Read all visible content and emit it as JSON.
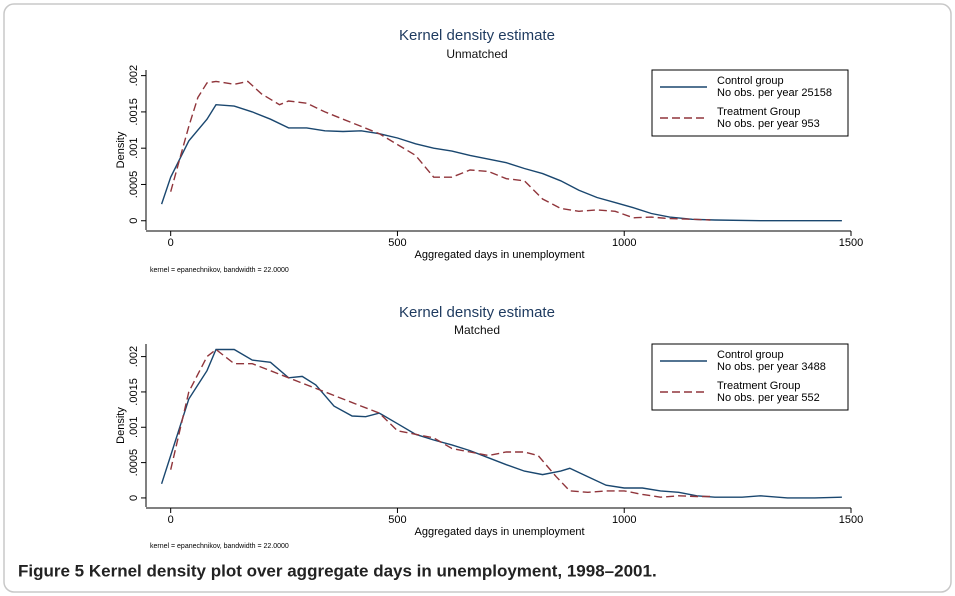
{
  "chart_data": [
    {
      "type": "line",
      "title": "Kernel density estimate",
      "subtitle": "Unmatched",
      "x_label": "Aggregated days in unemployment",
      "y_label": "Density",
      "note": "kernel = epanechnikov, bandwidth = 22.0000",
      "xlim": [
        -50,
        1500
      ],
      "xticks": [
        0,
        500,
        1000,
        1500
      ],
      "ylim": [
        -0.0001,
        0.00205
      ],
      "yticks": [
        0,
        {
          "value": 0.0005,
          "label": ".0005"
        },
        {
          "value": 0.001,
          "label": ".001"
        },
        {
          "value": 0.0015,
          "label": ".0015"
        },
        {
          "value": 0.002,
          "label": ".002"
        }
      ],
      "legend": "upper right",
      "series": [
        {
          "name": "Control group",
          "description": "No obs. per year 25158",
          "color": "#1a476f",
          "dash": false,
          "x": [
            -20,
            0,
            40,
            80,
            100,
            140,
            180,
            220,
            260,
            300,
            340,
            380,
            420,
            460,
            500,
            540,
            580,
            620,
            660,
            700,
            740,
            780,
            820,
            860,
            900,
            940,
            980,
            1020,
            1060,
            1100,
            1150,
            1200,
            1300,
            1400,
            1480
          ],
          "values": [
            0.00023,
            0.0006,
            0.0011,
            0.0014,
            0.0016,
            0.00158,
            0.0015,
            0.0014,
            0.00128,
            0.00128,
            0.00124,
            0.00123,
            0.00124,
            0.0012,
            0.00114,
            0.00106,
            0.001,
            0.00096,
            0.0009,
            0.00085,
            0.0008,
            0.00072,
            0.00065,
            0.00055,
            0.00042,
            0.00032,
            0.00025,
            0.00018,
            0.0001,
            5e-05,
            2e-05,
            1e-05,
            0,
            0,
            0
          ]
        },
        {
          "name": "Treatment Group",
          "description": "No obs. per year 953",
          "color": "#90353b",
          "dash": true,
          "x": [
            0,
            20,
            40,
            60,
            80,
            100,
            140,
            170,
            200,
            240,
            260,
            300,
            340,
            380,
            420,
            460,
            500,
            540,
            580,
            620,
            660,
            700,
            740,
            780,
            820,
            860,
            900,
            940,
            980,
            1020,
            1060,
            1100,
            1150,
            1190
          ],
          "values": [
            0.0004,
            0.00085,
            0.0013,
            0.0017,
            0.0019,
            0.00192,
            0.00188,
            0.00192,
            0.00175,
            0.0016,
            0.00165,
            0.00162,
            0.0015,
            0.0014,
            0.0013,
            0.0012,
            0.00105,
            0.0009,
            0.0006,
            0.0006,
            0.0007,
            0.00068,
            0.00058,
            0.00055,
            0.0003,
            0.00017,
            0.00013,
            0.00015,
            0.00013,
            4e-05,
            5e-05,
            3e-05,
            2e-05,
            1e-05
          ]
        }
      ]
    },
    {
      "type": "line",
      "title": "Kernel density estimate",
      "subtitle": "Matched",
      "x_label": "Aggregated days in unemployment",
      "y_label": "Density",
      "note": "kernel = epanechnikov, bandwidth = 22.0000",
      "xlim": [
        -50,
        1500
      ],
      "xticks": [
        0,
        500,
        1000,
        1500
      ],
      "ylim": [
        -0.0001,
        0.00215
      ],
      "yticks": [
        0,
        {
          "value": 0.0005,
          "label": ".0005"
        },
        {
          "value": 0.001,
          "label": ".001"
        },
        {
          "value": 0.0015,
          "label": ".0015"
        },
        {
          "value": 0.002,
          "label": ".002"
        }
      ],
      "legend": "upper right",
      "series": [
        {
          "name": "Control group",
          "description": "No obs. per year 3488",
          "color": "#1a476f",
          "dash": false,
          "x": [
            -20,
            0,
            40,
            80,
            100,
            140,
            180,
            220,
            260,
            290,
            320,
            360,
            400,
            430,
            460,
            500,
            540,
            580,
            620,
            660,
            700,
            740,
            780,
            820,
            860,
            880,
            920,
            960,
            1000,
            1040,
            1080,
            1120,
            1160,
            1200,
            1260,
            1300,
            1360,
            1420,
            1480
          ],
          "values": [
            0.0002,
            0.0006,
            0.0014,
            0.0018,
            0.0021,
            0.0021,
            0.00195,
            0.00192,
            0.0017,
            0.00172,
            0.0016,
            0.0013,
            0.00116,
            0.00115,
            0.0012,
            0.00105,
            0.0009,
            0.00082,
            0.00075,
            0.00067,
            0.00057,
            0.00047,
            0.00038,
            0.00033,
            0.00038,
            0.00042,
            0.0003,
            0.00018,
            0.00014,
            0.00014,
            0.0001,
            8e-05,
            3e-05,
            1e-05,
            1e-05,
            3e-05,
            0,
            0,
            1e-05
          ]
        },
        {
          "name": "Treatment Group",
          "description": "No obs. per year 552",
          "color": "#90353b",
          "dash": true,
          "x": [
            0,
            40,
            80,
            100,
            140,
            180,
            220,
            260,
            300,
            340,
            380,
            420,
            460,
            500,
            540,
            580,
            620,
            660,
            700,
            740,
            780,
            810,
            850,
            880,
            920,
            960,
            1000,
            1040,
            1080,
            1120,
            1160,
            1190
          ],
          "values": [
            0.0004,
            0.0015,
            0.002,
            0.0021,
            0.0019,
            0.0019,
            0.0018,
            0.0017,
            0.0016,
            0.0015,
            0.0014,
            0.0013,
            0.0012,
            0.00095,
            0.0009,
            0.00085,
            0.0007,
            0.00065,
            0.0006,
            0.00065,
            0.00065,
            0.0006,
            0.0003,
            0.0001,
            8e-05,
            0.0001,
            0.0001,
            5e-05,
            1e-05,
            3e-05,
            2e-05,
            2e-05
          ]
        }
      ]
    }
  ],
  "caption": "Figure 5 Kernel density plot over aggregate days in unemployment, 1998–2001."
}
